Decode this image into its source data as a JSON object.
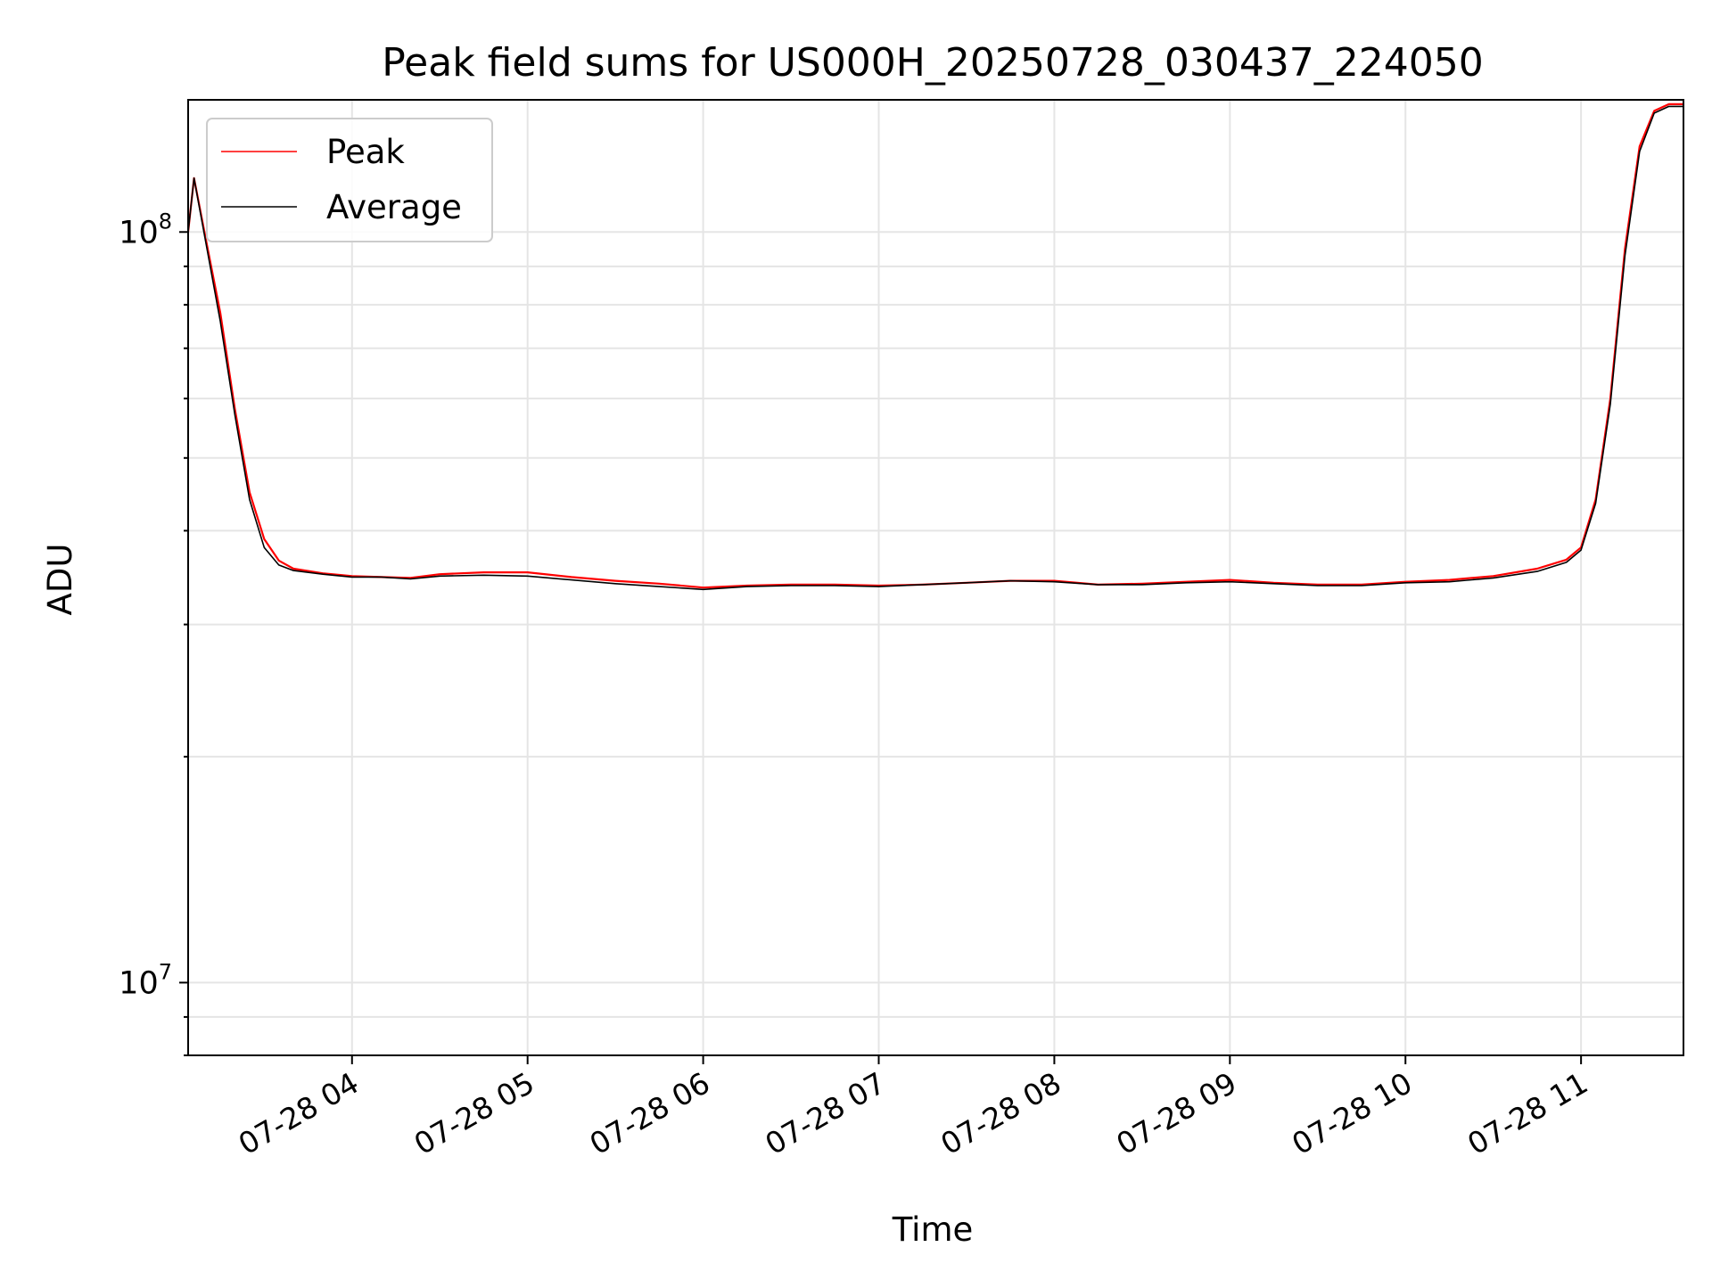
{
  "chart_data": {
    "type": "line",
    "title": "Peak field sums for US000H_20250728_030437_224050",
    "xlabel": "Time",
    "ylabel": "ADU",
    "yscale": "log",
    "ylim": [
      8000000,
      150000000
    ],
    "xlim": [
      "2025-07-28 03:04",
      "2025-07-28 11:35"
    ],
    "grid": true,
    "legend": {
      "position": "top-left",
      "entries": [
        "Peak",
        "Average"
      ]
    },
    "x_ticks": [
      {
        "value": "2025-07-28 04:00",
        "label": "07-28 04"
      },
      {
        "value": "2025-07-28 05:00",
        "label": "07-28 05"
      },
      {
        "value": "2025-07-28 06:00",
        "label": "07-28 06"
      },
      {
        "value": "2025-07-28 07:00",
        "label": "07-28 07"
      },
      {
        "value": "2025-07-28 08:00",
        "label": "07-28 08"
      },
      {
        "value": "2025-07-28 09:00",
        "label": "07-28 09"
      },
      {
        "value": "2025-07-28 10:00",
        "label": "07-28 10"
      },
      {
        "value": "2025-07-28 11:00",
        "label": "07-28 11"
      }
    ],
    "y_ticks": [
      {
        "value": 10000000,
        "base": "10",
        "exp": "7"
      },
      {
        "value": 100000000,
        "base": "10",
        "exp": "8"
      }
    ],
    "x": [
      "2025-07-28 03:04",
      "2025-07-28 03:06",
      "2025-07-28 03:10",
      "2025-07-28 03:15",
      "2025-07-28 03:20",
      "2025-07-28 03:25",
      "2025-07-28 03:30",
      "2025-07-28 03:35",
      "2025-07-28 03:40",
      "2025-07-28 03:50",
      "2025-07-28 04:00",
      "2025-07-28 04:10",
      "2025-07-28 04:20",
      "2025-07-28 04:30",
      "2025-07-28 04:45",
      "2025-07-28 05:00",
      "2025-07-28 05:15",
      "2025-07-28 05:30",
      "2025-07-28 05:45",
      "2025-07-28 06:00",
      "2025-07-28 06:15",
      "2025-07-28 06:30",
      "2025-07-28 06:45",
      "2025-07-28 07:00",
      "2025-07-28 07:15",
      "2025-07-28 07:30",
      "2025-07-28 07:45",
      "2025-07-28 08:00",
      "2025-07-28 08:15",
      "2025-07-28 08:30",
      "2025-07-28 08:45",
      "2025-07-28 09:00",
      "2025-07-28 09:15",
      "2025-07-28 09:30",
      "2025-07-28 09:45",
      "2025-07-28 10:00",
      "2025-07-28 10:15",
      "2025-07-28 10:30",
      "2025-07-28 10:45",
      "2025-07-28 10:55",
      "2025-07-28 11:00",
      "2025-07-28 11:05",
      "2025-07-28 11:10",
      "2025-07-28 11:15",
      "2025-07-28 11:20",
      "2025-07-28 11:25",
      "2025-07-28 11:30",
      "2025-07-28 11:35"
    ],
    "series": [
      {
        "name": "Peak",
        "color": "#ff0000",
        "values": [
          100000000,
          118000000,
          98000000,
          78000000,
          58000000,
          45000000,
          39000000,
          36500000,
          35600000,
          35100000,
          34800000,
          34700000,
          34600000,
          35000000,
          35200000,
          35200000,
          34700000,
          34300000,
          34000000,
          33600000,
          33800000,
          33900000,
          33900000,
          33800000,
          33900000,
          34100000,
          34300000,
          34300000,
          33900000,
          34000000,
          34200000,
          34400000,
          34100000,
          33900000,
          33900000,
          34200000,
          34400000,
          34800000,
          35600000,
          36600000,
          38000000,
          44000000,
          60000000,
          95000000,
          130000000,
          145000000,
          148000000,
          148000000
        ]
      },
      {
        "name": "Average",
        "color": "#000000",
        "values": [
          100000000,
          118000000,
          97000000,
          76000000,
          57000000,
          44000000,
          38000000,
          36000000,
          35400000,
          35000000,
          34700000,
          34700000,
          34500000,
          34800000,
          34900000,
          34800000,
          34400000,
          34000000,
          33700000,
          33400000,
          33700000,
          33800000,
          33800000,
          33700000,
          33900000,
          34100000,
          34300000,
          34200000,
          33900000,
          33900000,
          34100000,
          34200000,
          34000000,
          33800000,
          33800000,
          34100000,
          34200000,
          34600000,
          35300000,
          36300000,
          37700000,
          43500000,
          59000000,
          93000000,
          128000000,
          144000000,
          147000000,
          147000000
        ]
      }
    ]
  }
}
